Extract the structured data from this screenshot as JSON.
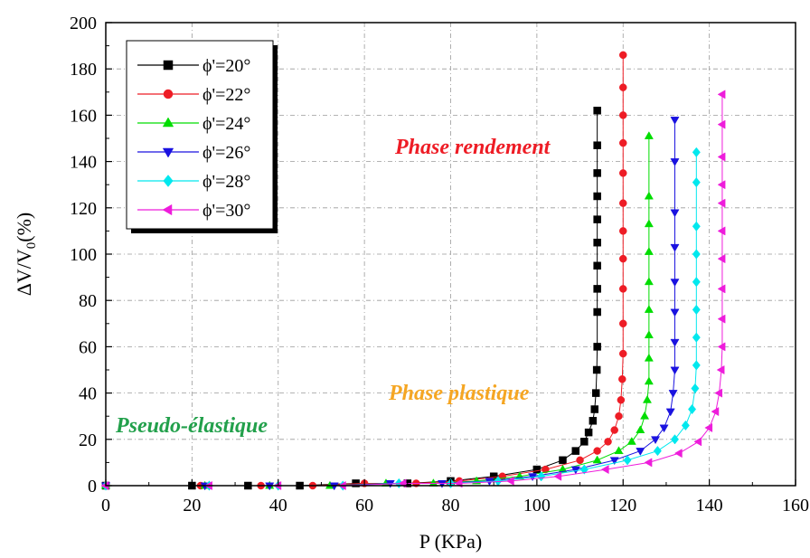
{
  "chart_data": {
    "type": "line",
    "xlabel": "P (KPa)",
    "ylabel_main": "ΔV/V",
    "ylabel_sub": "0",
    "ylabel_unit": "(%)",
    "xlim": [
      0,
      160
    ],
    "ylim": [
      0,
      200
    ],
    "xticks": [
      "0",
      "20",
      "40",
      "60",
      "80",
      "100",
      "120",
      "140",
      "160"
    ],
    "yticks": [
      "0",
      "20",
      "40",
      "60",
      "80",
      "100",
      "120",
      "140",
      "160",
      "180",
      "200"
    ],
    "grid": true,
    "legend_position": "top-left",
    "annotations": [
      {
        "text": "Phase rendement",
        "color": "#ee1c25"
      },
      {
        "text": "Phase plastique",
        "color": "#f5a623"
      },
      {
        "text": "Pseudo-élastique",
        "color": "#22a04b"
      }
    ],
    "series": [
      {
        "name": "ϕ'=20°",
        "color": "#000000",
        "marker": "square",
        "x": [
          0,
          20,
          33,
          45,
          58,
          70,
          80,
          90,
          100,
          106,
          109,
          111,
          112,
          113,
          113.4,
          113.7,
          113.9,
          114,
          114,
          114,
          114,
          114,
          114,
          114,
          114,
          114,
          114
        ],
        "y": [
          0,
          0,
          0,
          0,
          1,
          1,
          2,
          4,
          7,
          11,
          15,
          19,
          23,
          28,
          33,
          40,
          50,
          60,
          75,
          85,
          95,
          105,
          115,
          125,
          135,
          147,
          162
        ]
      },
      {
        "name": "ϕ'=22°",
        "color": "#ee1c25",
        "marker": "circle",
        "x": [
          0,
          22,
          36,
          48,
          60,
          72,
          82,
          92,
          102,
          110,
          114,
          116.5,
          118,
          119,
          119.5,
          119.8,
          120,
          120,
          120,
          120,
          120,
          120,
          120,
          120,
          120,
          120,
          120
        ],
        "y": [
          0,
          0,
          0,
          0,
          1,
          1,
          2,
          4,
          7,
          11,
          15,
          19,
          24,
          30,
          37,
          46,
          57,
          70,
          85,
          98,
          110,
          122,
          135,
          148,
          160,
          172,
          186
        ]
      },
      {
        "name": "ϕ'=24°",
        "color": "#00dd00",
        "marker": "triangle-up",
        "x": [
          0,
          23,
          38,
          52,
          65,
          76,
          86,
          96,
          106,
          114,
          119,
          122,
          124,
          125,
          125.6,
          126,
          126,
          126,
          126,
          126,
          126,
          126,
          126,
          126
        ],
        "y": [
          0,
          0,
          0,
          0,
          1,
          1,
          2,
          4,
          7,
          11,
          15,
          19,
          24,
          30,
          37,
          45,
          55,
          65,
          76,
          88,
          101,
          113,
          125,
          151
        ]
      },
      {
        "name": "ϕ'=26°",
        "color": "#1a12e0",
        "marker": "triangle-down",
        "x": [
          0,
          23,
          38,
          53,
          66,
          78,
          89,
          99,
          109,
          118,
          124,
          127.5,
          129.5,
          131,
          131.6,
          132,
          132,
          132,
          132,
          132,
          132,
          132,
          132
        ],
        "y": [
          0,
          0,
          0,
          0,
          1,
          1,
          2,
          4,
          7,
          11,
          15,
          20,
          25,
          32,
          40,
          50,
          62,
          75,
          88,
          103,
          118,
          140,
          158
        ]
      },
      {
        "name": "ϕ'=28°",
        "color": "#00e8ee",
        "marker": "diamond",
        "x": [
          0,
          24,
          40,
          55,
          68,
          80,
          91,
          101,
          111,
          121,
          128,
          132,
          134.5,
          136,
          136.7,
          137,
          137,
          137,
          137,
          137,
          137,
          137,
          137
        ],
        "y": [
          0,
          0,
          0,
          0,
          1,
          1,
          2,
          4,
          7,
          11,
          15,
          20,
          26,
          33,
          42,
          52,
          64,
          76,
          88,
          100,
          112,
          131,
          144
        ]
      },
      {
        "name": "ϕ'=30°",
        "color": "#ee1cdb",
        "marker": "triangle-left",
        "x": [
          0,
          24,
          40,
          55,
          69,
          82,
          94,
          105,
          116,
          126,
          133,
          137.5,
          140,
          141.5,
          142.3,
          142.8,
          143,
          143,
          143,
          143,
          143,
          143,
          143,
          143,
          143,
          143
        ],
        "y": [
          0,
          0,
          0,
          0,
          1,
          1,
          2,
          4,
          7,
          10,
          14,
          19,
          25,
          32,
          40,
          50,
          60,
          72,
          85,
          98,
          110,
          122,
          130,
          142,
          156,
          169
        ]
      }
    ]
  }
}
